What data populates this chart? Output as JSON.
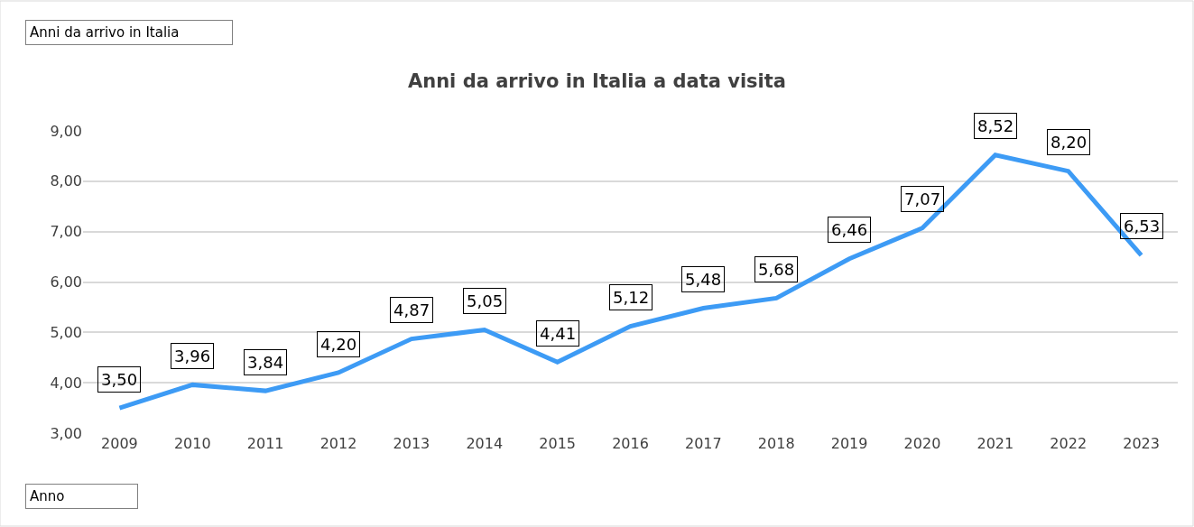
{
  "chart_data": {
    "type": "line",
    "title": "Anni da arrivo in Italia a data visita",
    "annotations": [
      "Anni da arrivo in Italia",
      "Anno"
    ],
    "categories": [
      "2009",
      "2010",
      "2011",
      "2012",
      "2013",
      "2014",
      "2015",
      "2016",
      "2017",
      "2018",
      "2019",
      "2020",
      "2021",
      "2022",
      "2023"
    ],
    "series": [
      {
        "color": "#3d9bf5",
        "values": [
          3.5,
          3.96,
          3.84,
          4.2,
          4.87,
          5.05,
          4.41,
          5.12,
          5.48,
          5.68,
          6.46,
          7.07,
          8.52,
          8.2,
          6.53
        ],
        "value_labels": [
          "3,50",
          "3,96",
          "3,84",
          "4,20",
          "4,87",
          "5,05",
          "4,41",
          "5,12",
          "5,48",
          "5,68",
          "6,46",
          "7,07",
          "8,52",
          "8,20",
          "6,53"
        ]
      }
    ],
    "ylim": [
      3,
      9
    ],
    "yticks": [
      {
        "value": 3,
        "label": "3,00"
      },
      {
        "value": 4,
        "label": "4,00"
      },
      {
        "value": 5,
        "label": "5,00"
      },
      {
        "value": 6,
        "label": "6,00"
      },
      {
        "value": 7,
        "label": "7,00"
      },
      {
        "value": 8,
        "label": "8,00"
      },
      {
        "value": 9,
        "label": "9,00"
      }
    ],
    "grid": "y",
    "marker": "none",
    "line_style": "solid"
  }
}
